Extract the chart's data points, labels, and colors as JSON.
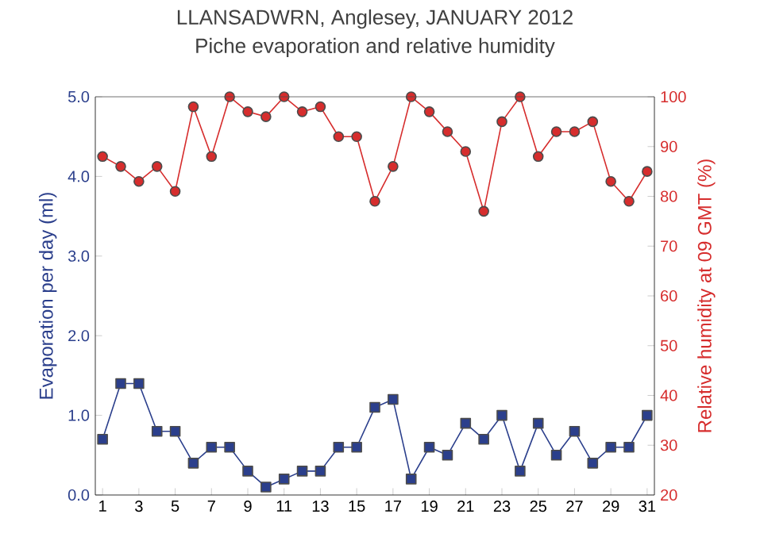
{
  "chart_data": {
    "type": "line",
    "title": "LLANSADWRN, Anglesey, JANUARY 2012",
    "subtitle": "Piche evaporation and relative humidity",
    "ylabel": "Evaporation per day (ml)",
    "y2label": "Relative humidity at 09 GMT (%)",
    "x": [
      1,
      2,
      3,
      4,
      5,
      6,
      7,
      8,
      9,
      10,
      11,
      12,
      13,
      14,
      15,
      16,
      17,
      18,
      19,
      20,
      21,
      22,
      23,
      24,
      25,
      26,
      27,
      28,
      29,
      30,
      31
    ],
    "xlim": [
      0.6,
      31.4
    ],
    "xticks": [
      1,
      3,
      5,
      7,
      9,
      11,
      13,
      15,
      17,
      19,
      21,
      23,
      25,
      27,
      29,
      31
    ],
    "ylim": [
      0,
      5
    ],
    "yticks": [
      {
        "value": 0,
        "label": "0.0"
      },
      {
        "value": 1,
        "label": "1.0"
      },
      {
        "value": 2,
        "label": "2.0"
      },
      {
        "value": 3,
        "label": "3.0"
      },
      {
        "value": 4,
        "label": "4.0"
      },
      {
        "value": 5,
        "label": "5.0"
      }
    ],
    "y2lim": [
      20,
      100
    ],
    "y2ticks": [
      20,
      30,
      40,
      50,
      60,
      70,
      80,
      90,
      100
    ],
    "series": [
      {
        "color": "#2b3f8c",
        "marker": "square",
        "values": [
          0.7,
          1.4,
          1.4,
          0.8,
          0.8,
          0.4,
          0.6,
          0.6,
          0.3,
          0.1,
          0.2,
          0.3,
          0.3,
          0.6,
          0.6,
          1.1,
          1.2,
          0.2,
          0.6,
          0.5,
          0.9,
          0.7,
          1.0,
          0.3,
          0.9,
          0.5,
          0.8,
          0.4,
          0.6,
          0.6,
          1.0
        ]
      },
      {
        "color": "#d62d2d",
        "marker": "circle",
        "axis": "y2",
        "values": [
          88,
          86,
          83,
          86,
          81,
          98,
          88,
          100,
          97,
          96,
          100,
          97,
          98,
          92,
          92,
          79,
          86,
          100,
          97,
          93,
          89,
          77,
          95,
          100,
          88,
          93,
          93,
          95,
          83,
          79,
          85
        ]
      }
    ]
  }
}
